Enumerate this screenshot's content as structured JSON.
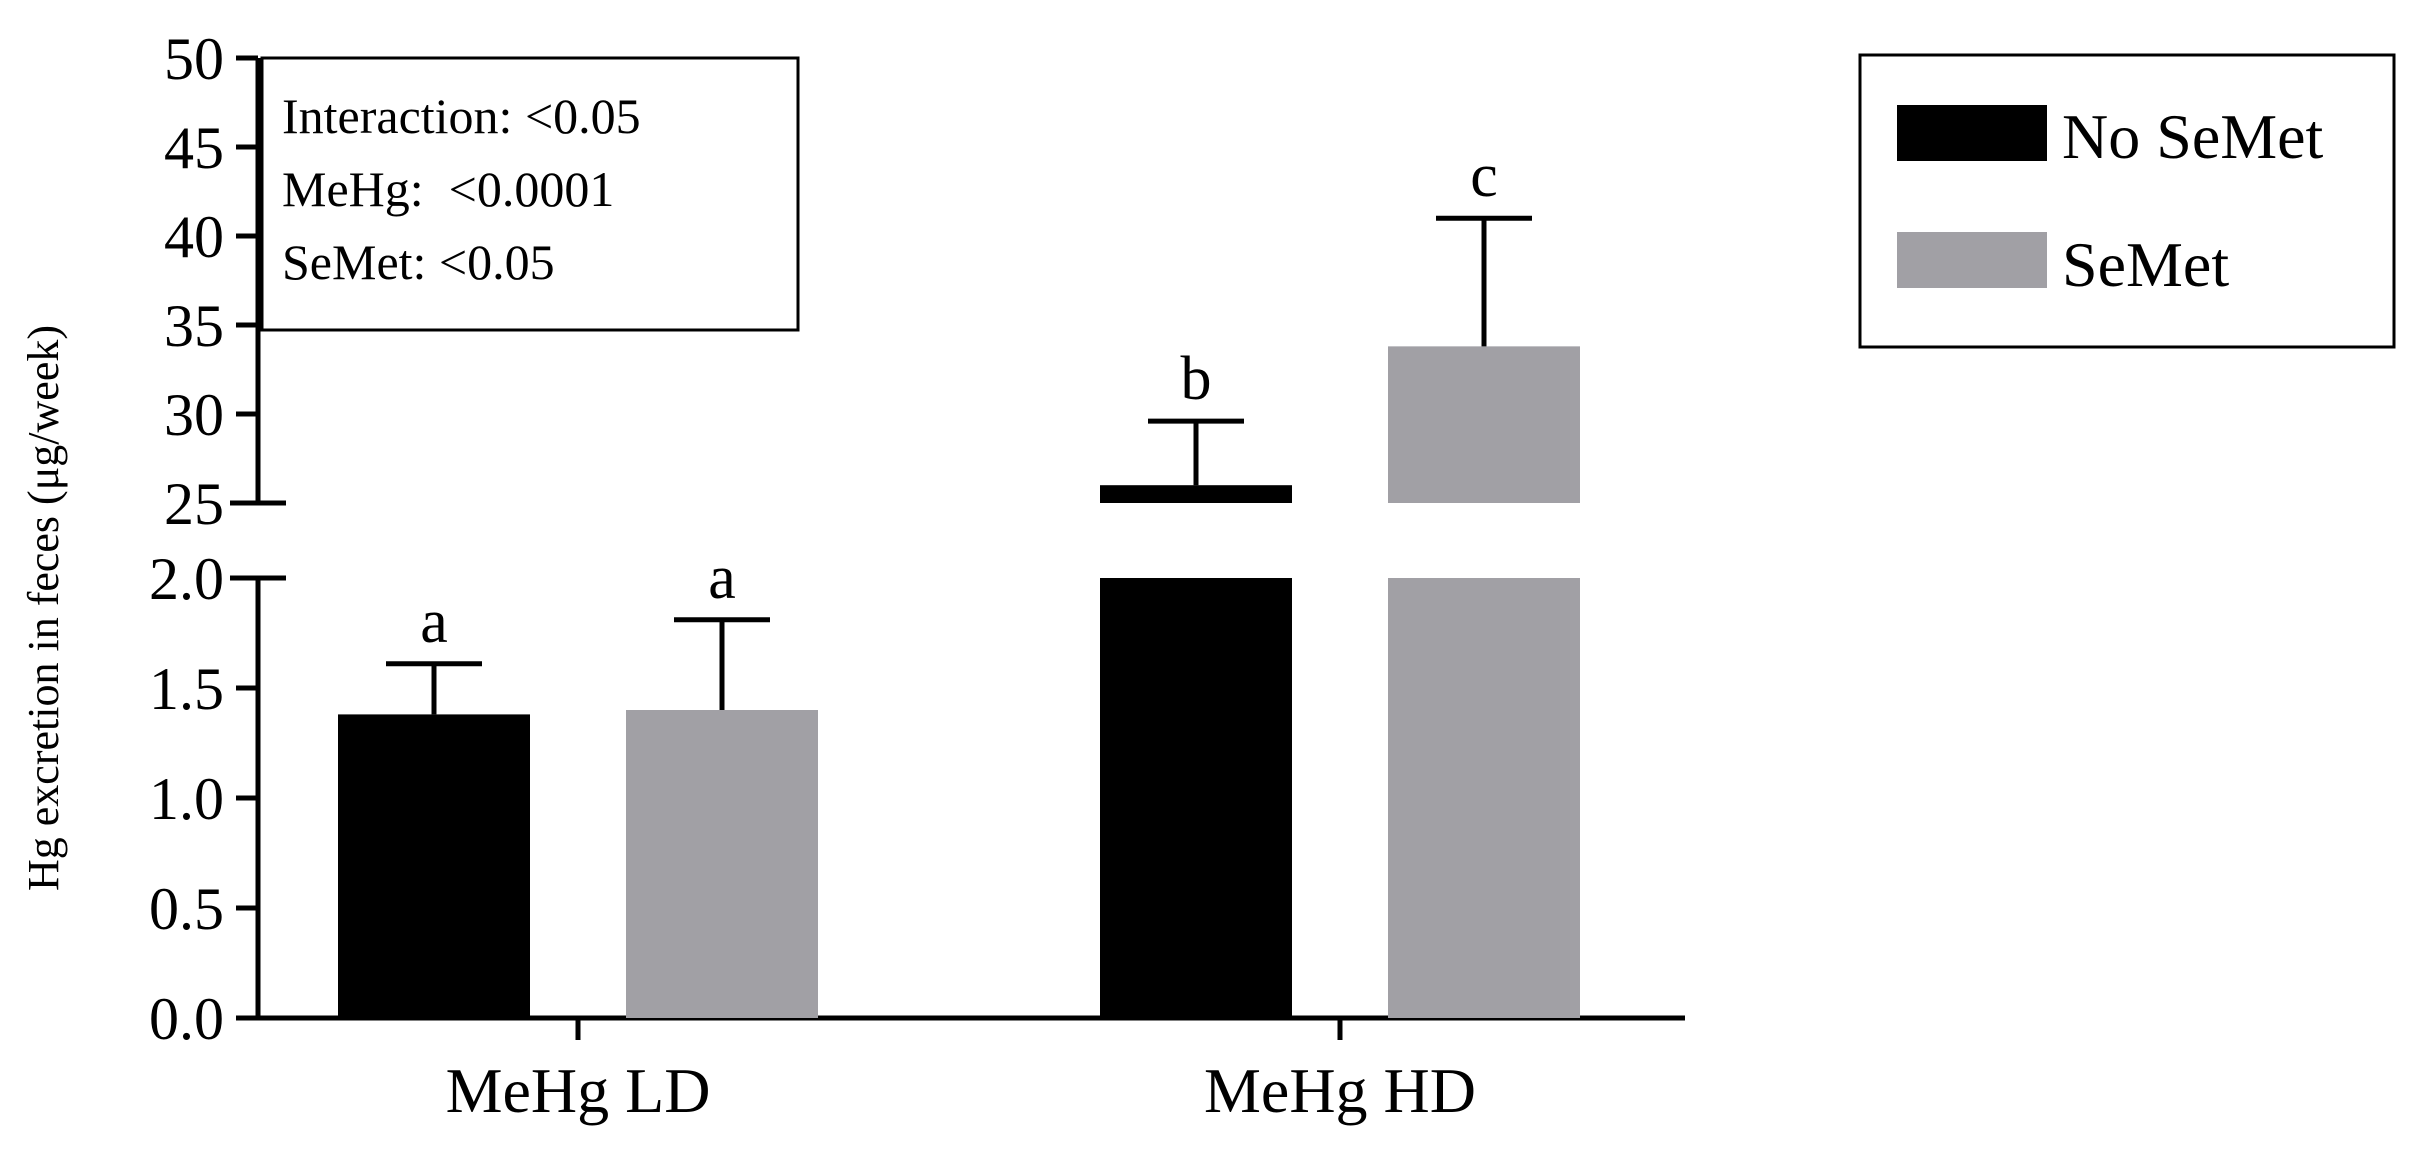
{
  "chart_data": {
    "type": "bar",
    "ylabel": "Hg excretion in feces (μg/week)",
    "categories": [
      "MeHg LD",
      "MeHg HD"
    ],
    "y_axis_break": {
      "lower": {
        "range": [
          0,
          2.0
        ],
        "ticks": [
          "0.0",
          "0.5",
          "1.0",
          "1.5",
          "2.0"
        ]
      },
      "upper": {
        "range": [
          25,
          50
        ],
        "ticks": [
          "25",
          "30",
          "35",
          "40",
          "45",
          "50"
        ]
      }
    },
    "series": [
      {
        "name": "No SeMet",
        "color": "#000000",
        "values": [
          1.38,
          26.0
        ],
        "errors": [
          0.23,
          3.6
        ],
        "significance": [
          "a",
          "b"
        ]
      },
      {
        "name": "SeMet",
        "color": "#a1a0a5",
        "values": [
          1.4,
          33.8
        ],
        "errors": [
          0.41,
          7.2
        ],
        "significance": [
          "a",
          "c"
        ]
      }
    ],
    "stats_box": [
      "Interaction: <0.05",
      "MeHg:  <0.0001",
      "SeMet: <0.05"
    ],
    "legend_position": "top-right",
    "grid": false
  }
}
